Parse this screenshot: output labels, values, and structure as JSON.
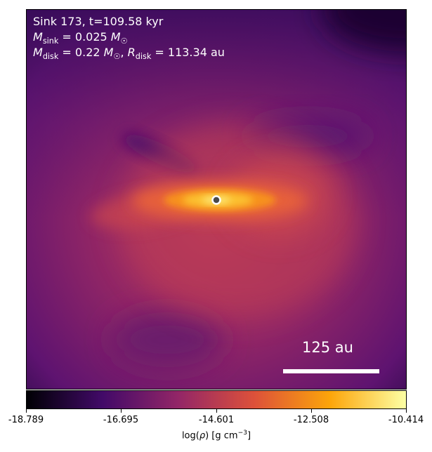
{
  "header": {
    "sink_line": "Sink 173, t=109.58 kyr",
    "msink_line": "M_sink = 0.025 M_☉",
    "mdisk_line": "M_disk = 0.22 M_☉, R_disk = 113.34 au"
  },
  "scale_bar": {
    "label": "125 au"
  },
  "colorbar": {
    "label": "log(ρ) [g cm⁻³]",
    "ticks": [
      "-18.789",
      "-16.695",
      "-14.601",
      "-12.508",
      "-10.414"
    ],
    "colormap": "inferno",
    "colors": [
      "#000004",
      "#420a68",
      "#932667",
      "#dd513a",
      "#fca50a",
      "#fcffa4"
    ]
  },
  "sink_marker": {
    "color": "#4a4a4a",
    "ring_color": "#ffffff"
  }
}
